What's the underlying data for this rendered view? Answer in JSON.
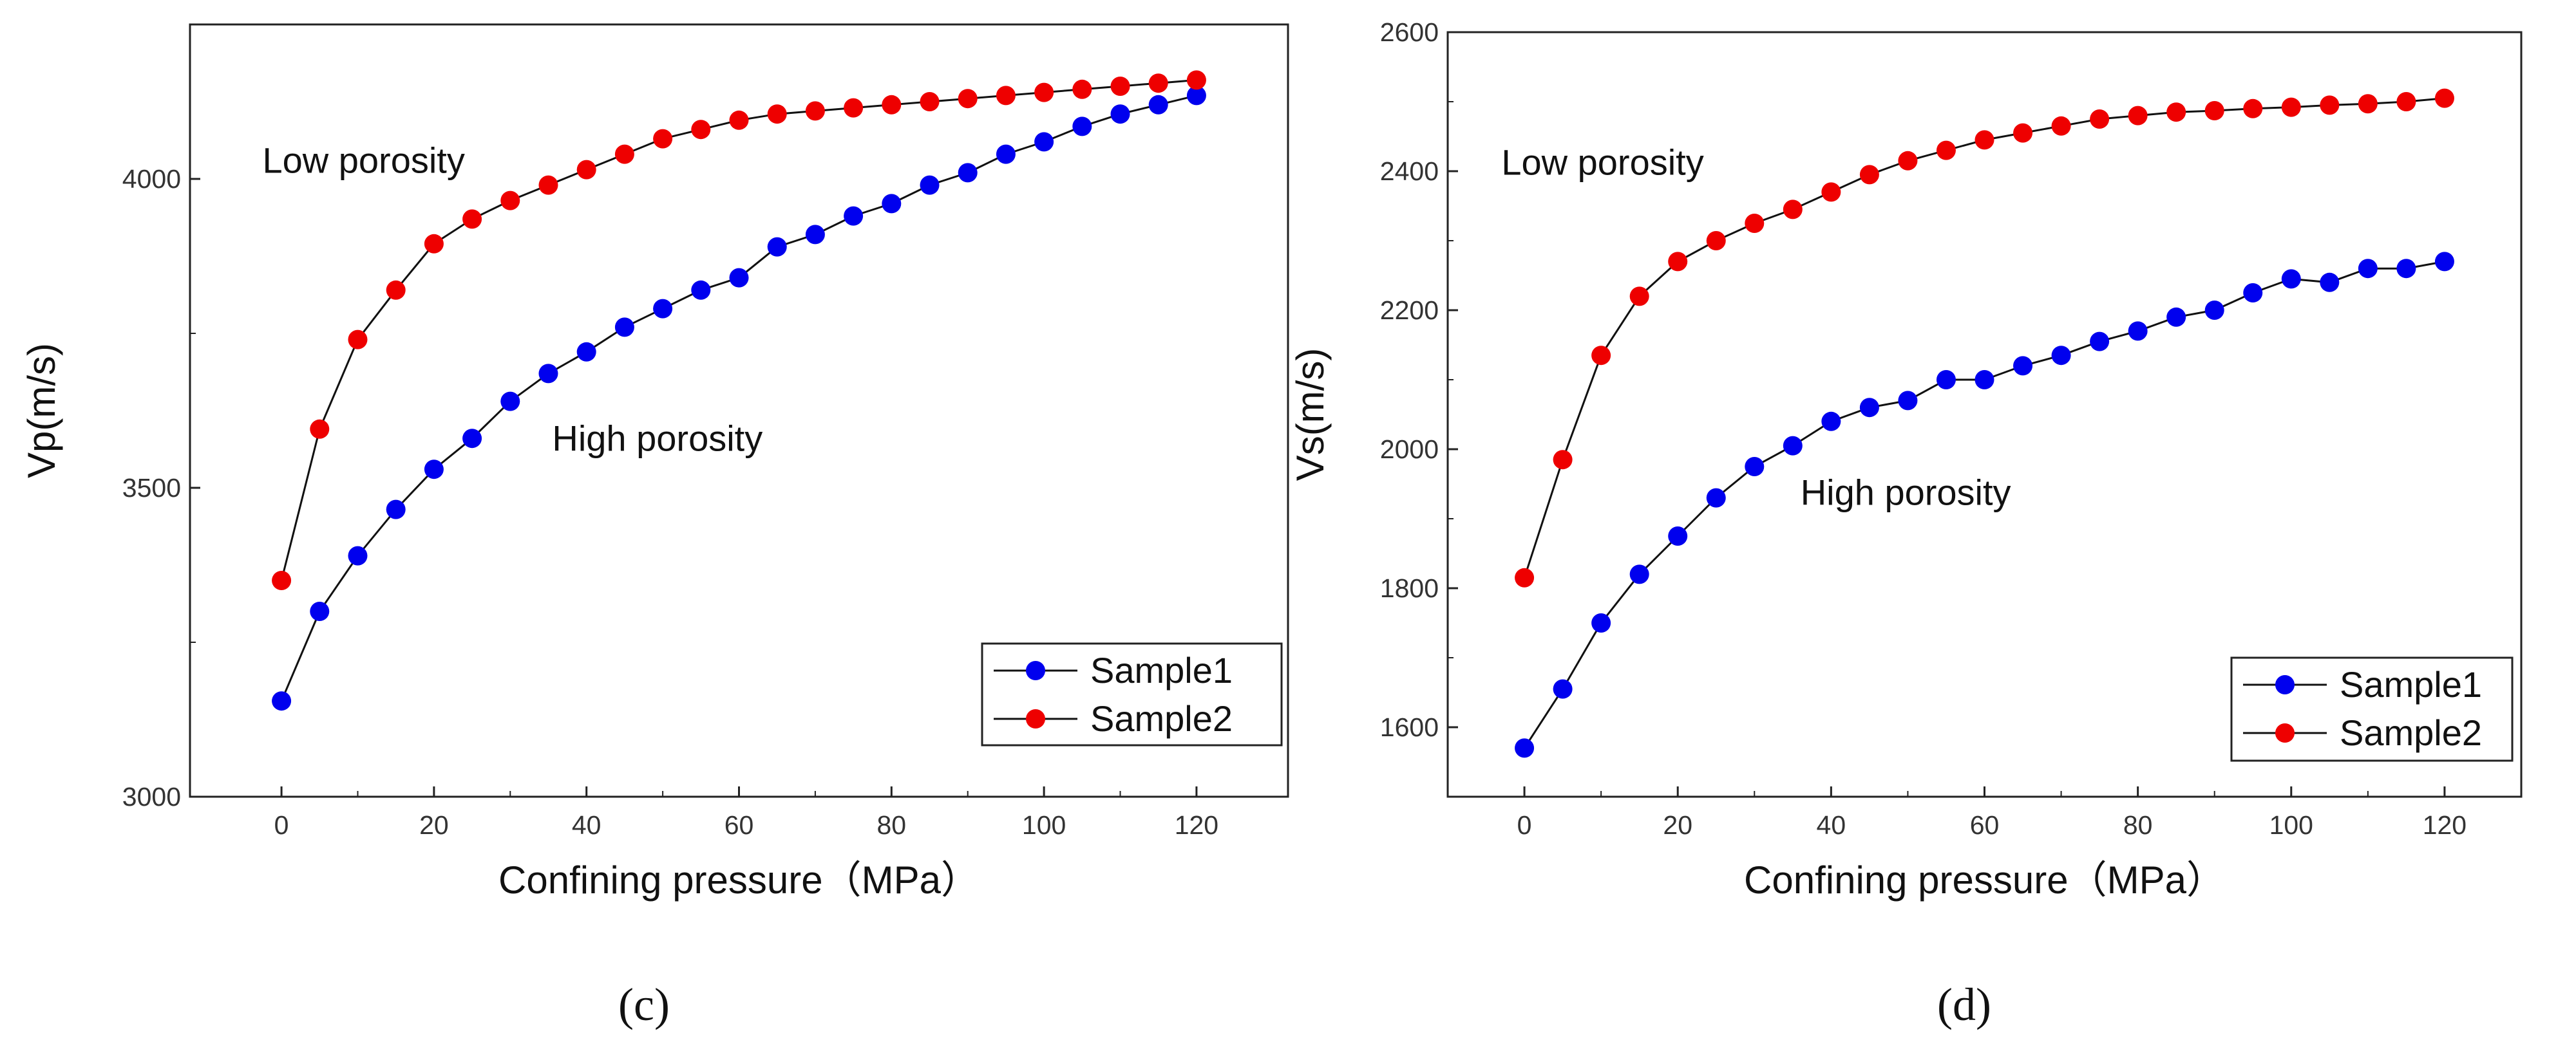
{
  "chart_data": [
    {
      "type": "scatter",
      "panel_label": "(c)",
      "xlabel": "Confining pressure（MPa）",
      "ylabel": "Vp(m/s)",
      "xlim": [
        -12,
        132
      ],
      "ylim": [
        3000,
        4250
      ],
      "xticks": [
        0,
        20,
        40,
        60,
        80,
        100,
        120
      ],
      "yticks": [
        3000,
        3500,
        4000
      ],
      "grid": false,
      "legend_position": "bottom-right",
      "x": [
        0,
        5,
        10,
        15,
        20,
        25,
        30,
        35,
        40,
        45,
        50,
        55,
        60,
        65,
        70,
        75,
        80,
        85,
        90,
        95,
        100,
        105,
        110,
        115,
        120
      ],
      "series": [
        {
          "name": "Sample1",
          "color": "#0000ee",
          "values": [
            3155,
            3300,
            3390,
            3465,
            3530,
            3580,
            3640,
            3685,
            3720,
            3760,
            3790,
            3820,
            3840,
            3890,
            3910,
            3940,
            3960,
            3990,
            4010,
            4040,
            4060,
            4085,
            4105,
            4120,
            4135
          ]
        },
        {
          "name": "Sample2",
          "color": "#ee0000",
          "values": [
            3350,
            3595,
            3740,
            3820,
            3895,
            3935,
            3965,
            3990,
            4015,
            4040,
            4065,
            4080,
            4095,
            4105,
            4110,
            4115,
            4120,
            4125,
            4130,
            4135,
            4140,
            4145,
            4150,
            4155,
            4160
          ]
        }
      ],
      "annotations": [
        {
          "text": "Low porosity",
          "x": -2.5,
          "y": 4010
        },
        {
          "text": "High porosity",
          "x": 35.5,
          "y": 3560
        }
      ]
    },
    {
      "type": "scatter",
      "panel_label": "(d)",
      "xlabel": "Confining pressure（MPa）",
      "ylabel": "Vs(m/s)",
      "xlim": [
        -10,
        130
      ],
      "ylim": [
        1500,
        2600
      ],
      "xticks": [
        0,
        20,
        40,
        60,
        80,
        100,
        120
      ],
      "yticks": [
        1600,
        1800,
        2000,
        2200,
        2400,
        2600
      ],
      "grid": false,
      "legend_position": "bottom-right",
      "x": [
        0,
        5,
        10,
        15,
        20,
        25,
        30,
        35,
        40,
        45,
        50,
        55,
        60,
        65,
        70,
        75,
        80,
        85,
        90,
        95,
        100,
        105,
        110,
        115,
        120
      ],
      "series": [
        {
          "name": "Sample1",
          "color": "#0000ee",
          "values": [
            1570,
            1655,
            1750,
            1820,
            1875,
            1930,
            1975,
            2005,
            2040,
            2060,
            2070,
            2100,
            2100,
            2120,
            2135,
            2155,
            2170,
            2190,
            2200,
            2225,
            2245,
            2240,
            2260,
            2260,
            2270
          ]
        },
        {
          "name": "Sample2",
          "color": "#ee0000",
          "values": [
            1815,
            1985,
            2135,
            2220,
            2270,
            2300,
            2325,
            2345,
            2370,
            2395,
            2415,
            2430,
            2445,
            2455,
            2465,
            2475,
            2480,
            2485,
            2487,
            2490,
            2492,
            2495,
            2497,
            2500,
            2505
          ]
        }
      ],
      "annotations": [
        {
          "text": "Low porosity",
          "x": -3,
          "y": 2395
        },
        {
          "text": "High porosity",
          "x": 36,
          "y": 1920
        }
      ]
    }
  ]
}
